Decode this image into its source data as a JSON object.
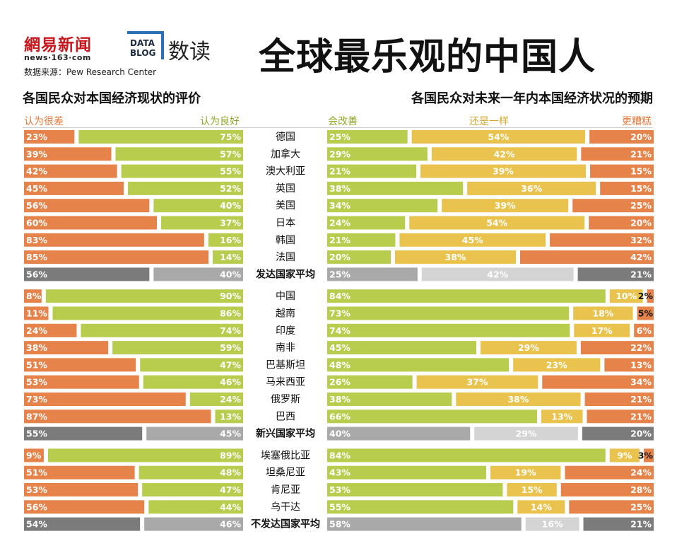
{
  "header": {
    "logo_163": "網易新闻",
    "logo_sub": "news·163·com",
    "source": "数据来源：Pew Research Center",
    "blog_line1": "DATA",
    "blog_line2": "BLOG",
    "blog_name": "数读",
    "title": "全球最乐观的中国人"
  },
  "colors": {
    "orange": "#e6834a",
    "green": "#b8cc4e",
    "yellow": "#e9c34d",
    "avg_dark": "#7b7b7b",
    "avg_mid": "#a9a9a9",
    "avg_light": "#d4d4d4",
    "label_orange": "#e4793b",
    "label_green": "#8fa82a",
    "label_yellow": "#d4a832"
  },
  "chart_data": [
    {
      "type": "bar",
      "subtype": "diverging-stacked-horizontal",
      "title": "各国民众对本国经济现状的评价",
      "series": [
        {
          "name": "认为很差",
          "values": [
            23,
            39,
            42,
            45,
            56,
            60,
            83,
            85,
            56,
            8,
            11,
            24,
            38,
            51,
            53,
            73,
            87,
            55,
            9,
            51,
            53,
            56,
            54
          ]
        },
        {
          "name": "认为良好",
          "values": [
            75,
            57,
            55,
            52,
            40,
            37,
            16,
            14,
            40,
            90,
            86,
            74,
            59,
            47,
            46,
            24,
            13,
            45,
            89,
            48,
            47,
            44,
            46
          ]
        }
      ],
      "unit": "%"
    },
    {
      "type": "bar",
      "subtype": "stacked-horizontal",
      "title": "各国民众对未来一年内本国经济状况的预期",
      "series": [
        {
          "name": "会改善",
          "values": [
            25,
            29,
            21,
            38,
            34,
            24,
            21,
            20,
            25,
            84,
            73,
            74,
            45,
            48,
            26,
            38,
            66,
            40,
            84,
            43,
            53,
            55,
            58
          ]
        },
        {
          "name": "还是一样",
          "values": [
            54,
            42,
            39,
            36,
            39,
            54,
            45,
            38,
            42,
            10,
            18,
            17,
            29,
            23,
            37,
            38,
            13,
            29,
            9,
            19,
            15,
            14,
            16
          ]
        },
        {
          "name": "更糟糕",
          "values": [
            20,
            21,
            15,
            15,
            25,
            20,
            32,
            42,
            21,
            2,
            5,
            6,
            22,
            13,
            34,
            21,
            21,
            20,
            3,
            24,
            28,
            25,
            21
          ]
        }
      ],
      "unit": "%"
    }
  ],
  "rows": [
    {
      "name": "德国",
      "avg": false
    },
    {
      "name": "加拿大",
      "avg": false
    },
    {
      "name": "澳大利亚",
      "avg": false
    },
    {
      "name": "英国",
      "avg": false
    },
    {
      "name": "美国",
      "avg": false
    },
    {
      "name": "日本",
      "avg": false
    },
    {
      "name": "韩国",
      "avg": false
    },
    {
      "name": "法国",
      "avg": false
    },
    {
      "name": "发达国家平均",
      "avg": true
    },
    {
      "name": "中国",
      "avg": false
    },
    {
      "name": "越南",
      "avg": false
    },
    {
      "name": "印度",
      "avg": false
    },
    {
      "name": "南非",
      "avg": false
    },
    {
      "name": "巴基斯坦",
      "avg": false
    },
    {
      "name": "马来西亚",
      "avg": false
    },
    {
      "name": "俄罗斯",
      "avg": false
    },
    {
      "name": "巴西",
      "avg": false
    },
    {
      "name": "新兴国家平均",
      "avg": true
    },
    {
      "name": "埃塞俄比亚",
      "avg": false
    },
    {
      "name": "坦桑尼亚",
      "avg": false
    },
    {
      "name": "肯尼亚",
      "avg": false
    },
    {
      "name": "乌干达",
      "avg": false
    },
    {
      "name": "不发达国家平均",
      "avg": true
    }
  ]
}
